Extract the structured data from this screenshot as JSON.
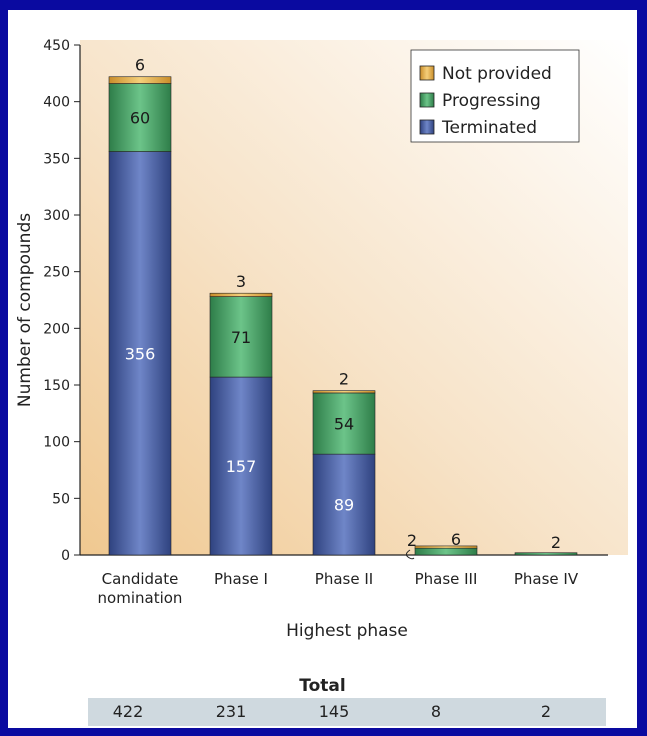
{
  "chart_data": {
    "type": "bar",
    "stacked": true,
    "categories": [
      "Candidate nomination",
      "Phase I",
      "Phase II",
      "Phase III",
      "Phase IV"
    ],
    "category_lines": [
      [
        "Candidate",
        "nomination"
      ],
      [
        "Phase I"
      ],
      [
        "Phase II"
      ],
      [
        "Phase III"
      ],
      [
        "Phase IV"
      ]
    ],
    "series": [
      {
        "name": "Terminated",
        "color": "#3a4f9a",
        "values": [
          356,
          157,
          89,
          0,
          0
        ],
        "labels": [
          "356",
          "157",
          "89",
          "",
          ""
        ]
      },
      {
        "name": "Progressing",
        "color": "#3c9a5c",
        "values": [
          60,
          71,
          54,
          6,
          2
        ],
        "labels": [
          "60",
          "71",
          "54",
          "",
          ""
        ]
      },
      {
        "name": "Not provided",
        "color": "#e8b04a",
        "values": [
          6,
          3,
          2,
          2,
          0
        ],
        "labels": [
          "6",
          "3",
          "2",
          "",
          ""
        ]
      }
    ],
    "annotations": [
      {
        "category": "Phase III",
        "text": "2"
      },
      {
        "category": "Phase III",
        "text": "6"
      },
      {
        "category": "Phase IV",
        "text": "2"
      }
    ],
    "legend_order": [
      "Not provided",
      "Progressing",
      "Terminated"
    ],
    "legend_position": "top-right",
    "xlabel": "Highest phase",
    "ylabel": "Number of compounds",
    "ylim": [
      0,
      450
    ],
    "yticks": [
      0,
      50,
      100,
      150,
      200,
      250,
      300,
      350,
      400,
      450
    ],
    "grid": false
  },
  "totals": {
    "title": "Total",
    "values": [
      "422",
      "231",
      "145",
      "8",
      "2"
    ]
  }
}
